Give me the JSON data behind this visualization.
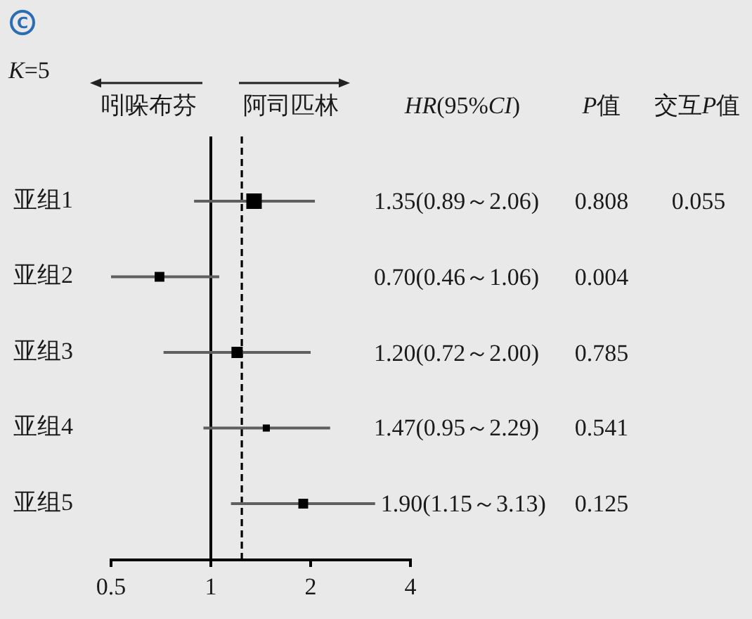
{
  "chart_data": {
    "type": "bubble",
    "orientation": "horizontal",
    "title": "C",
    "categories": [
      "亚组1",
      "亚组2",
      "亚组3",
      "亚组4",
      "亚组5"
    ],
    "values": [
      1.35,
      0.7,
      1.2,
      1.47,
      1.9
    ],
    "errors": [
      [
        0.89,
        2.06
      ],
      [
        0.5,
        1.06
      ],
      [
        0.72,
        2.0
      ],
      [
        0.95,
        2.29
      ],
      [
        1.15,
        3.13
      ]
    ],
    "sizes": [
      1,
      0.4,
      0.53,
      0.21,
      0.4
    ],
    "color": "#000000",
    "marker": "square",
    "value_labels": [
      "1.35(0.89～2.06)",
      "0.70(0.46～1.06)",
      "1.20(0.72～2.00)",
      "1.47(0.95～2.29)",
      "1.90(1.15～3.13)"
    ],
    "log": "x",
    "xlim": [
      0.5,
      4
    ],
    "xticks": [
      0.5,
      1,
      2,
      4
    ],
    "grid": false,
    "legend": false,
    "ref_lines": [
      {
        "axis": "x",
        "value": 1,
        "color": "#000000",
        "line_style": "solid"
      },
      {
        "axis": "x",
        "value": 1.24,
        "color": "#000000",
        "line_style": "dashed"
      }
    ],
    "annotations": [
      "K=5",
      "吲哚布芬",
      "阿司匹林",
      "HR(95%CI)",
      "P值",
      "交互P值",
      "0.808",
      "0.004",
      "0.785",
      "0.541",
      "0.125",
      "0.055"
    ]
  }
}
